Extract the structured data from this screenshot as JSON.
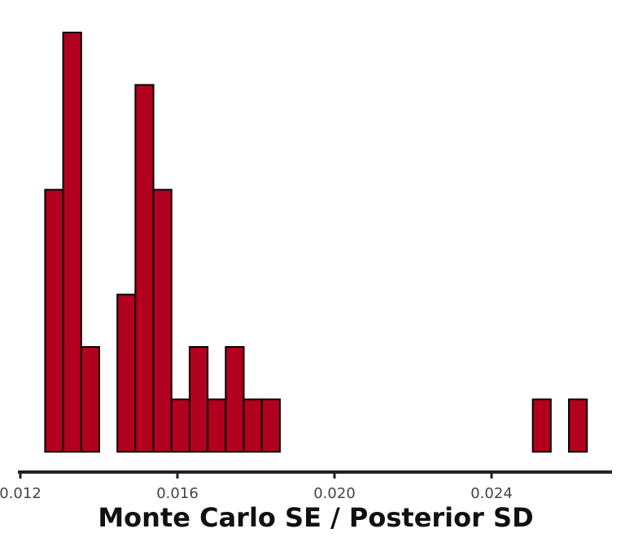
{
  "chart_data": {
    "type": "bar",
    "title": "",
    "xlabel": "Monte Carlo SE / Posterior SD",
    "ylabel": "",
    "xlim": [
      0.012,
      0.027
    ],
    "ylim": [
      0,
      8
    ],
    "xticks": [
      0.012,
      0.016,
      0.02,
      0.024
    ],
    "xtick_labels": [
      "0.012",
      "0.016",
      "0.020",
      "0.024"
    ],
    "bin_width": 0.00046,
    "bin_start": 0.01263,
    "counts": [
      5,
      8,
      2,
      0,
      3,
      7,
      5,
      1,
      2,
      1,
      2,
      1,
      1,
      0,
      0,
      0,
      0,
      0,
      0,
      0,
      0,
      0,
      0,
      0,
      0,
      0,
      0,
      1,
      0,
      1
    ],
    "fill_color": "#b2001f",
    "edge_color": "#000000",
    "grid": false,
    "legend": "none"
  }
}
